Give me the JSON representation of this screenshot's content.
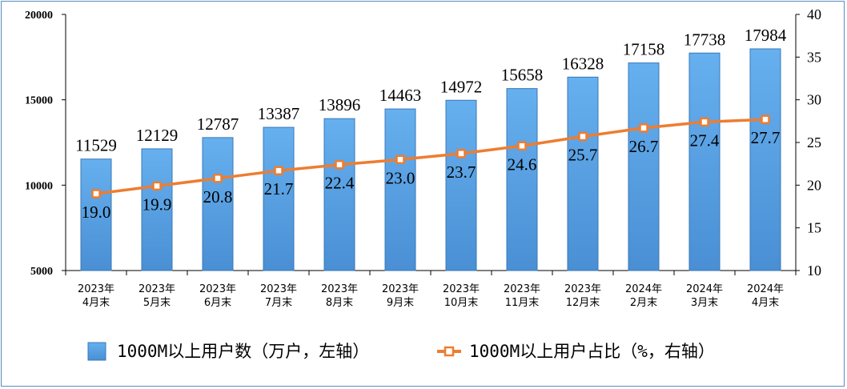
{
  "chart_data": {
    "type": "bar",
    "categories": [
      [
        "2023年",
        "4月末"
      ],
      [
        "2023年",
        "5月末"
      ],
      [
        "2023年",
        "6月末"
      ],
      [
        "2023年",
        "7月末"
      ],
      [
        "2023年",
        "8月末"
      ],
      [
        "2023年",
        "9月末"
      ],
      [
        "2023年",
        "10月末"
      ],
      [
        "2023年",
        "11月末"
      ],
      [
        "2023年",
        "12月末"
      ],
      [
        "2024年",
        "2月末"
      ],
      [
        "2024年",
        "3月末"
      ],
      [
        "2024年",
        "4月末"
      ]
    ],
    "series": [
      {
        "name": "1000M以上用户数（万户，左轴）",
        "type": "bar",
        "axis": "left",
        "values": [
          11529,
          12129,
          12787,
          13387,
          13896,
          14463,
          14972,
          15658,
          16328,
          17158,
          17738,
          17984
        ],
        "labels": [
          "11529",
          "12129",
          "12787",
          "13387",
          "13896",
          "14463",
          "14972",
          "15658",
          "16328",
          "17158",
          "17738",
          "17984"
        ],
        "color": "#5aa3e6"
      },
      {
        "name": "1000M以上用户占比（%，右轴）",
        "type": "line",
        "axis": "right",
        "values": [
          19.0,
          19.9,
          20.8,
          21.7,
          22.4,
          23.0,
          23.7,
          24.6,
          25.7,
          26.7,
          27.4,
          27.7
        ],
        "labels": [
          "19.0",
          "19.9",
          "20.8",
          "21.7",
          "22.4",
          "23.0",
          "23.7",
          "24.6",
          "25.7",
          "26.7",
          "27.4",
          "27.7"
        ],
        "color": "#ed7d31"
      }
    ],
    "y_left": {
      "min": 5000,
      "max": 20000,
      "ticks": [
        "5000",
        "10000",
        "15000",
        "20000"
      ]
    },
    "y_right": {
      "min": 10,
      "max": 40,
      "ticks": [
        "10",
        "15",
        "20",
        "25",
        "30",
        "35",
        "40"
      ]
    },
    "legend_position": "bottom",
    "grid": false
  }
}
